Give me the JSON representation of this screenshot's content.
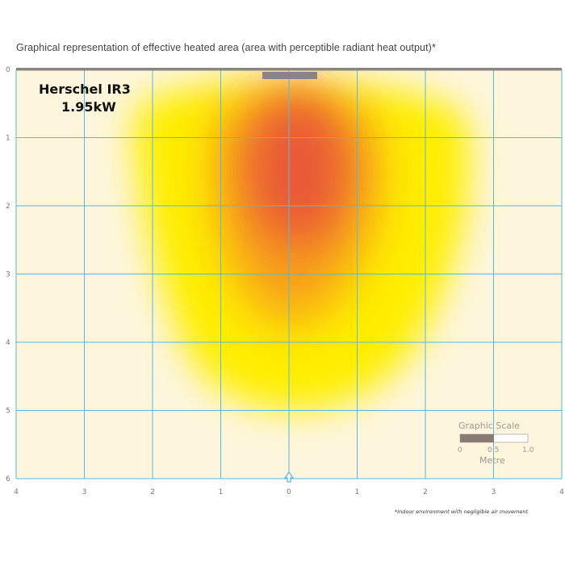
{
  "chart_data": {
    "type": "heatmap",
    "title": "Graphical representation of effective heated area (area with perceptible radiant heat output)*",
    "product_name": "Herschel IR3",
    "product_power": "1.95kW",
    "x_ticks": [
      "4",
      "3",
      "2",
      "1",
      "0",
      "1",
      "2",
      "3",
      "4"
    ],
    "y_ticks": [
      "0",
      "1",
      "2",
      "3",
      "4",
      "5",
      "6"
    ],
    "xlim": [
      -4,
      4
    ],
    "ylim": [
      0,
      6
    ],
    "grid": true,
    "heat_colors": {
      "low": "#ffee00",
      "mid": "#f7961e",
      "high": "#e8513a"
    },
    "heater_color": "#8a8580",
    "background_color": "#fdf6dc",
    "grid_color": "#55b8e6",
    "scale": {
      "title": "Graphic Scale",
      "ticks": [
        "0",
        "0.5",
        "1.0"
      ],
      "unit": "Metre",
      "fill_fraction": 0.5
    },
    "footnote": "*Indoor environment with negligible air movement"
  }
}
